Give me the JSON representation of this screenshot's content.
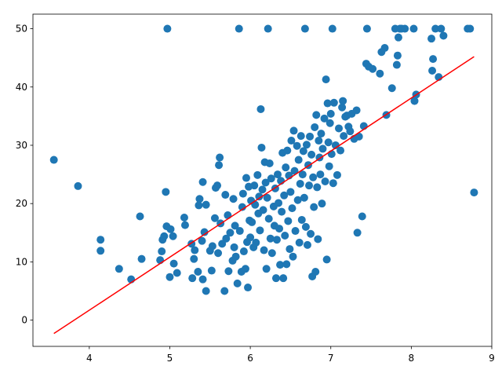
{
  "chart_data": {
    "type": "scatter",
    "title": "",
    "xlabel": "",
    "ylabel": "",
    "xlim": [
      3.3,
      9.0
    ],
    "ylim": [
      -4.5,
      52.5
    ],
    "xticks": [
      4,
      5,
      6,
      7,
      8,
      9
    ],
    "yticks": [
      0,
      10,
      20,
      30,
      40,
      50
    ],
    "grid": false,
    "legend": "none",
    "point_color": "#1f77b4",
    "line_color": "#ff0000",
    "series": [
      {
        "type": "scatter",
        "points": [
          [
            3.56,
            27.5
          ],
          [
            3.86,
            23.0
          ],
          [
            4.14,
            13.8
          ],
          [
            4.14,
            11.9
          ],
          [
            4.37,
            8.8
          ],
          [
            4.52,
            7.0
          ],
          [
            4.63,
            17.8
          ],
          [
            4.65,
            10.5
          ],
          [
            4.88,
            10.3
          ],
          [
            4.9,
            11.8
          ],
          [
            4.91,
            13.8
          ],
          [
            4.93,
            14.4
          ],
          [
            4.95,
            22.0
          ],
          [
            4.96,
            16.1
          ],
          [
            4.97,
            50.0
          ],
          [
            5.0,
            7.4
          ],
          [
            5.01,
            15.6
          ],
          [
            5.04,
            14.4
          ],
          [
            5.05,
            9.7
          ],
          [
            5.09,
            8.1
          ],
          [
            5.18,
            17.6
          ],
          [
            5.19,
            16.3
          ],
          [
            5.27,
            13.1
          ],
          [
            5.28,
            7.2
          ],
          [
            5.3,
            10.5
          ],
          [
            5.31,
            12.0
          ],
          [
            5.35,
            8.3
          ],
          [
            5.36,
            19.7
          ],
          [
            5.37,
            20.8
          ],
          [
            5.4,
            13.6
          ],
          [
            5.41,
            7.0
          ],
          [
            5.41,
            23.7
          ],
          [
            5.43,
            15.1
          ],
          [
            5.45,
            5.0
          ],
          [
            5.45,
            19.8
          ],
          [
            5.5,
            11.9
          ],
          [
            5.52,
            8.5
          ],
          [
            5.53,
            12.7
          ],
          [
            5.56,
            17.5
          ],
          [
            5.57,
            22.7
          ],
          [
            5.59,
            23.1
          ],
          [
            5.6,
            11.5
          ],
          [
            5.61,
            26.6
          ],
          [
            5.62,
            27.9
          ],
          [
            5.63,
            16.6
          ],
          [
            5.65,
            13.1
          ],
          [
            5.68,
            5.0
          ],
          [
            5.69,
            21.5
          ],
          [
            5.7,
            14.0
          ],
          [
            5.72,
            18.0
          ],
          [
            5.73,
            8.4
          ],
          [
            5.75,
            15.0
          ],
          [
            5.78,
            10.2
          ],
          [
            5.79,
            20.8
          ],
          [
            5.8,
            12.5
          ],
          [
            5.81,
            16.2
          ],
          [
            5.82,
            10.9
          ],
          [
            5.84,
            6.3
          ],
          [
            5.86,
            50.0
          ],
          [
            5.87,
            15.3
          ],
          [
            5.89,
            8.3
          ],
          [
            5.9,
            19.4
          ],
          [
            5.91,
            21.7
          ],
          [
            5.92,
            11.8
          ],
          [
            5.94,
            8.8
          ],
          [
            5.95,
            24.4
          ],
          [
            5.96,
            13.4
          ],
          [
            5.97,
            5.6
          ],
          [
            5.98,
            22.9
          ],
          [
            5.99,
            17.1
          ],
          [
            6.0,
            14.2
          ],
          [
            6.01,
            20.5
          ],
          [
            6.02,
            16.8
          ],
          [
            6.04,
            12.5
          ],
          [
            6.05,
            23.1
          ],
          [
            6.06,
            19.8
          ],
          [
            6.07,
            13.3
          ],
          [
            6.09,
            24.9
          ],
          [
            6.1,
            18.3
          ],
          [
            6.11,
            21.2
          ],
          [
            6.12,
            15.4
          ],
          [
            6.13,
            36.2
          ],
          [
            6.14,
            29.6
          ],
          [
            6.15,
            22.4
          ],
          [
            6.16,
            18.9
          ],
          [
            6.17,
            12.0
          ],
          [
            6.18,
            27.1
          ],
          [
            6.19,
            23.6
          ],
          [
            6.2,
            8.8
          ],
          [
            6.21,
            21.0
          ],
          [
            6.22,
            50.0
          ],
          [
            6.23,
            17.4
          ],
          [
            6.24,
            26.9
          ],
          [
            6.25,
            14.0
          ],
          [
            6.26,
            24.3
          ],
          [
            6.27,
            11.5
          ],
          [
            6.29,
            19.5
          ],
          [
            6.3,
            16.2
          ],
          [
            6.31,
            22.6
          ],
          [
            6.32,
            7.2
          ],
          [
            6.33,
            13.8
          ],
          [
            6.34,
            25.0
          ],
          [
            6.35,
            20.1
          ],
          [
            6.36,
            15.7
          ],
          [
            6.37,
            9.5
          ],
          [
            6.38,
            23.9
          ],
          [
            6.39,
            18.6
          ],
          [
            6.4,
            28.7
          ],
          [
            6.41,
            7.2
          ],
          [
            6.42,
            21.4
          ],
          [
            6.43,
            14.5
          ],
          [
            6.44,
            26.2
          ],
          [
            6.45,
            9.6
          ],
          [
            6.46,
            29.1
          ],
          [
            6.47,
            17.0
          ],
          [
            6.48,
            24.8
          ],
          [
            6.49,
            12.2
          ],
          [
            6.5,
            22.0
          ],
          [
            6.51,
            30.8
          ],
          [
            6.52,
            19.2
          ],
          [
            6.53,
            10.9
          ],
          [
            6.54,
            32.5
          ],
          [
            6.55,
            25.6
          ],
          [
            6.56,
            15.3
          ],
          [
            6.58,
            29.9
          ],
          [
            6.59,
            20.6
          ],
          [
            6.6,
            27.5
          ],
          [
            6.61,
            13.3
          ],
          [
            6.62,
            23.4
          ],
          [
            6.63,
            31.6
          ],
          [
            6.64,
            17.2
          ],
          [
            6.65,
            25.0
          ],
          [
            6.66,
            29.0
          ],
          [
            6.67,
            21.0
          ],
          [
            6.68,
            50.0
          ],
          [
            6.69,
            16.0
          ],
          [
            6.7,
            30.1
          ],
          [
            6.71,
            12.9
          ],
          [
            6.72,
            26.6
          ],
          [
            6.73,
            23.1
          ],
          [
            6.74,
            31.5
          ],
          [
            6.75,
            14.8
          ],
          [
            6.76,
            28.4
          ],
          [
            6.77,
            7.5
          ],
          [
            6.78,
            24.5
          ],
          [
            6.79,
            19.4
          ],
          [
            6.8,
            33.1
          ],
          [
            6.81,
            8.3
          ],
          [
            6.82,
            35.2
          ],
          [
            6.83,
            22.8
          ],
          [
            6.84,
            13.9
          ],
          [
            6.85,
            30.8
          ],
          [
            6.86,
            27.9
          ],
          [
            6.87,
            25.0
          ],
          [
            6.88,
            32.0
          ],
          [
            6.89,
            20.0
          ],
          [
            6.9,
            29.4
          ],
          [
            6.92,
            34.6
          ],
          [
            6.93,
            23.8
          ],
          [
            6.94,
            41.3
          ],
          [
            6.95,
            10.4
          ],
          [
            6.96,
            37.2
          ],
          [
            6.97,
            30.5
          ],
          [
            6.98,
            26.4
          ],
          [
            6.99,
            33.8
          ],
          [
            7.0,
            35.4
          ],
          [
            7.01,
            28.5
          ],
          [
            7.02,
            50.0
          ],
          [
            7.03,
            23.5
          ],
          [
            7.04,
            37.3
          ],
          [
            7.06,
            30.0
          ],
          [
            7.08,
            24.9
          ],
          [
            7.1,
            32.9
          ],
          [
            7.12,
            29.1
          ],
          [
            7.14,
            36.5
          ],
          [
            7.15,
            37.6
          ],
          [
            7.16,
            31.6
          ],
          [
            7.18,
            34.9
          ],
          [
            7.2,
            35.1
          ],
          [
            7.22,
            33.2
          ],
          [
            7.24,
            32.4
          ],
          [
            7.26,
            35.4
          ],
          [
            7.29,
            31.1
          ],
          [
            7.32,
            36.0
          ],
          [
            7.33,
            15.0
          ],
          [
            7.35,
            31.5
          ],
          [
            7.39,
            17.8
          ],
          [
            7.41,
            33.3
          ],
          [
            7.44,
            44.0
          ],
          [
            7.45,
            50.0
          ],
          [
            7.47,
            43.5
          ],
          [
            7.52,
            43.1
          ],
          [
            7.61,
            42.3
          ],
          [
            7.63,
            46.0
          ],
          [
            7.67,
            46.7
          ],
          [
            7.69,
            35.2
          ],
          [
            7.76,
            39.8
          ],
          [
            7.8,
            50.0
          ],
          [
            7.82,
            43.8
          ],
          [
            7.83,
            45.4
          ],
          [
            7.84,
            48.5
          ],
          [
            7.86,
            50.0
          ],
          [
            7.88,
            50.0
          ],
          [
            7.92,
            50.0
          ],
          [
            8.03,
            50.0
          ],
          [
            8.04,
            37.6
          ],
          [
            8.06,
            38.7
          ],
          [
            8.25,
            48.3
          ],
          [
            8.26,
            42.8
          ],
          [
            8.27,
            44.8
          ],
          [
            8.3,
            50.0
          ],
          [
            8.34,
            41.7
          ],
          [
            8.37,
            50.0
          ],
          [
            8.4,
            48.8
          ],
          [
            8.7,
            50.0
          ],
          [
            8.73,
            50.0
          ],
          [
            8.78,
            21.9
          ]
        ]
      },
      {
        "type": "line",
        "points": [
          [
            3.56,
            -2.3
          ],
          [
            8.78,
            45.2
          ]
        ]
      }
    ]
  }
}
